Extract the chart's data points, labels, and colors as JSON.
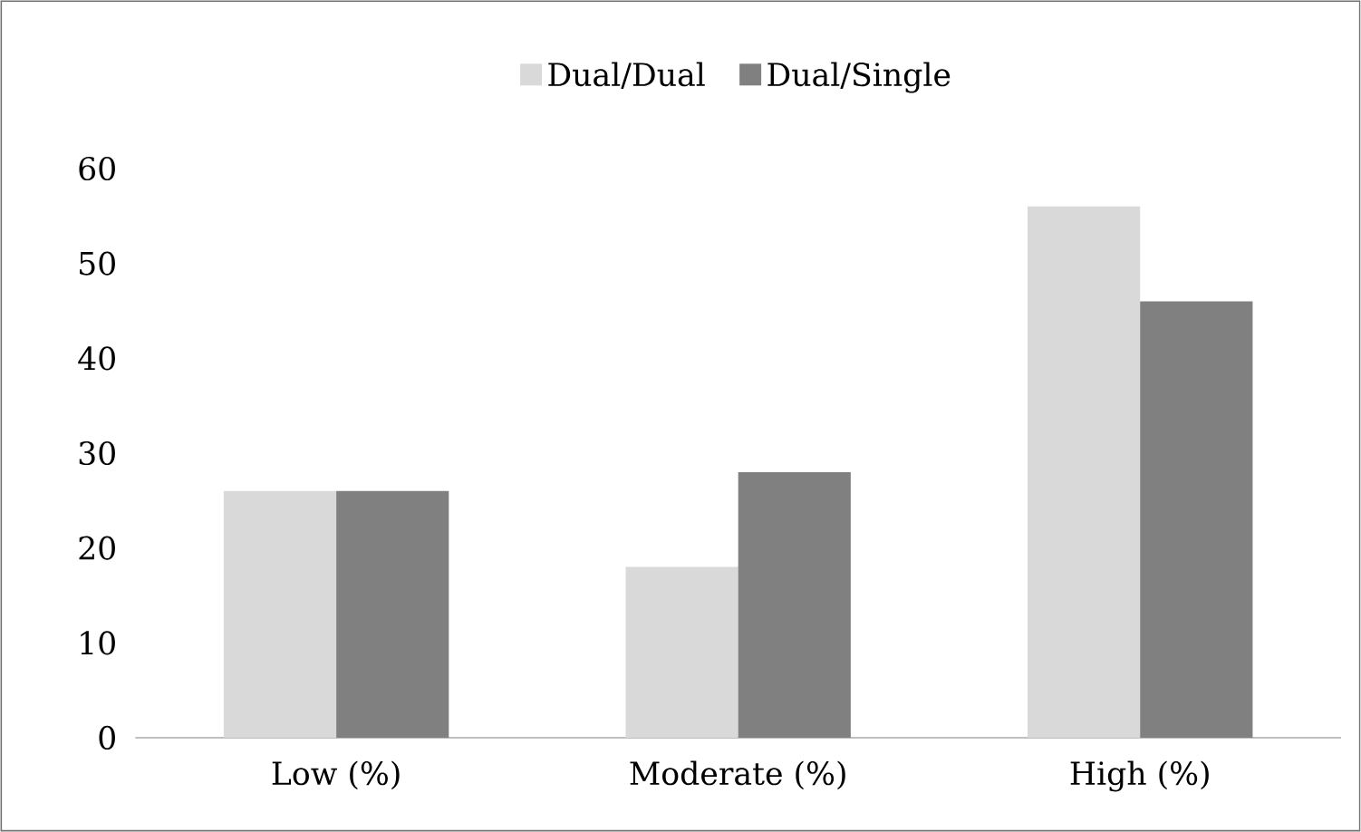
{
  "chart_data": {
    "type": "bar",
    "categories": [
      "Low (%)",
      "Moderate (%)",
      "High (%)"
    ],
    "series": [
      {
        "name": "Dual/Dual",
        "color": "#d9d9d9",
        "values": [
          26,
          18,
          56
        ]
      },
      {
        "name": "Dual/Single",
        "color": "#808080",
        "values": [
          26,
          28,
          46
        ]
      }
    ],
    "ylim": [
      0,
      60
    ],
    "yticks": [
      0,
      10,
      20,
      30,
      40,
      50,
      60
    ],
    "grid": false,
    "legend": "top"
  }
}
